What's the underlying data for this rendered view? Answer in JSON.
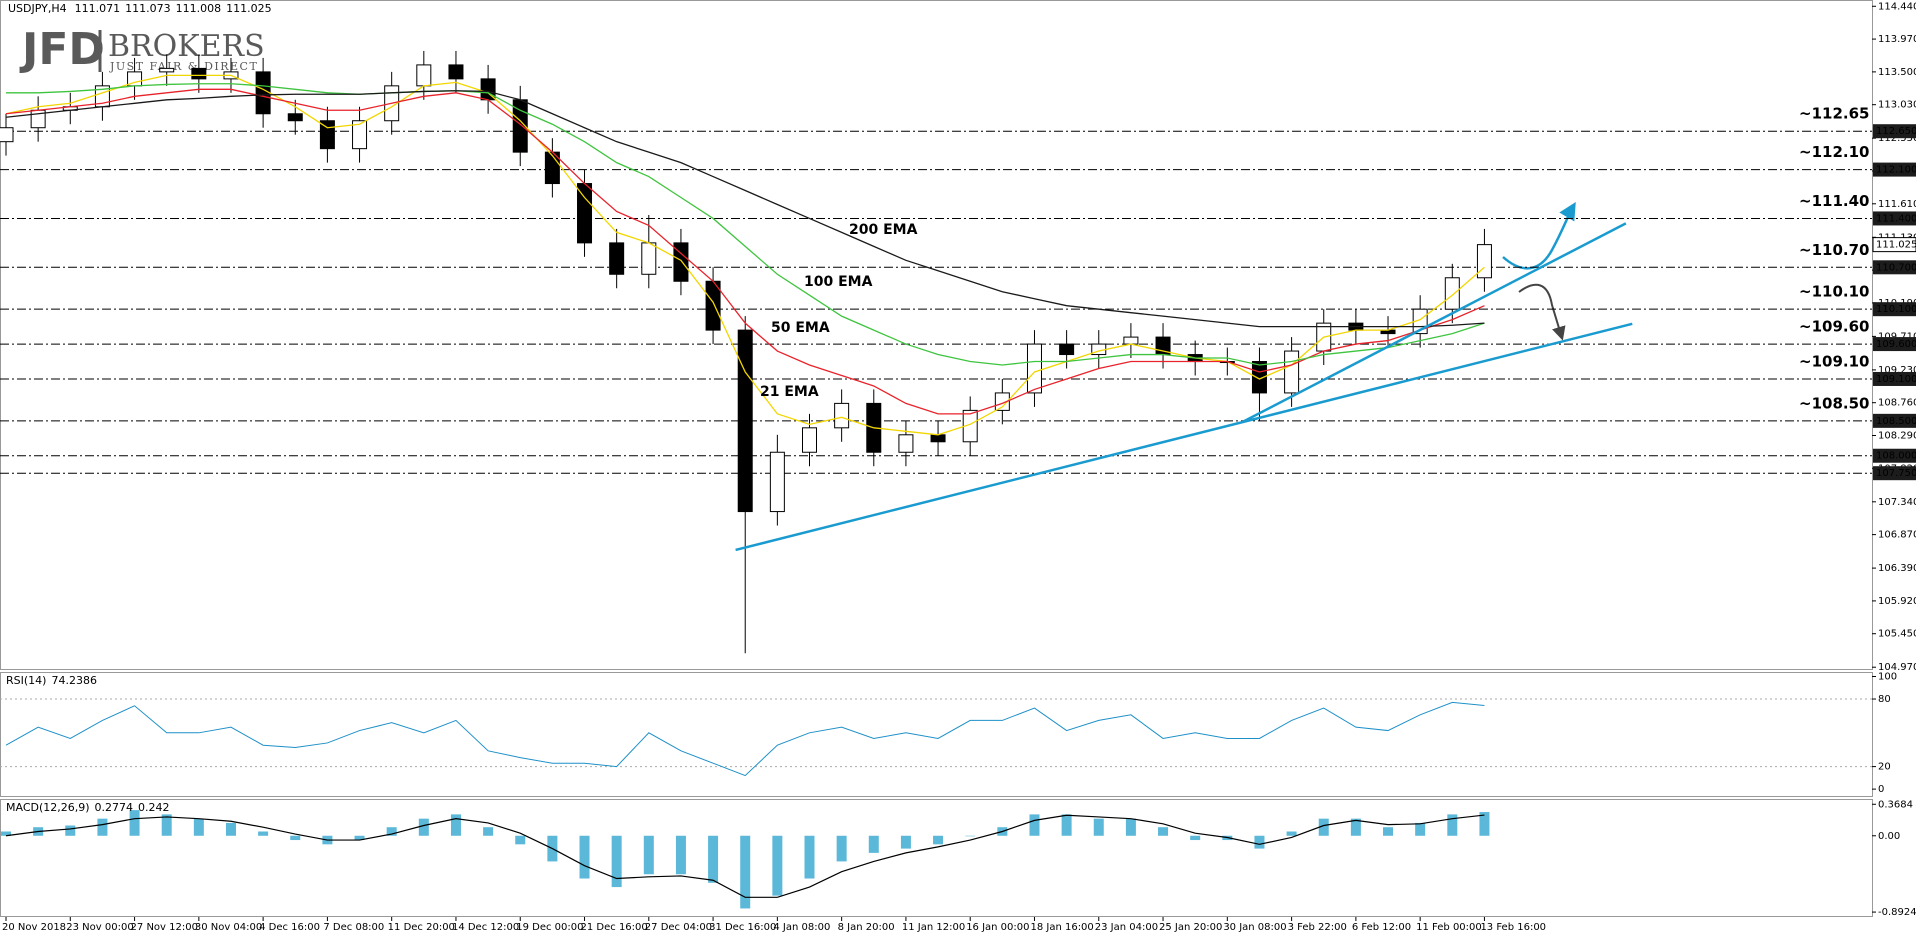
{
  "header": {
    "symbol": "USDJPY,H4",
    "ohlc": [
      111.071,
      111.073,
      111.008,
      111.025
    ]
  },
  "logo": {
    "mark": "JFD",
    "name": "BROKERS",
    "tagline": "JUST FAIR & DIRECT"
  },
  "chart_data": [
    {
      "type": "candlestick",
      "categories": [
        "20 Nov 2018",
        null,
        "23 Nov 00:00",
        null,
        "27 Nov 12:00",
        null,
        "30 Nov 04:00",
        null,
        "4 Dec 16:00",
        null,
        "7 Dec 08:00",
        null,
        "11 Dec 20:00",
        null,
        "14 Dec 12:00",
        null,
        "19 Dec 00:00",
        null,
        "21 Dec 16:00",
        null,
        "27 Dec 04:00",
        null,
        "31 Dec 16:00",
        null,
        "4 Jan 08:00",
        null,
        "8 Jan 20:00",
        null,
        "11 Jan 12:00",
        null,
        "16 Jan 00:00",
        null,
        "18 Jan 16:00",
        null,
        "23 Jan 04:00",
        null,
        "25 Jan 20:00",
        null,
        "30 Jan 08:00",
        null,
        "3 Feb 22:00",
        null,
        "6 Feb 12:00",
        null,
        "11 Feb 00:00",
        null,
        "13 Feb 16:00"
      ],
      "open": [
        112.5,
        112.7,
        112.95,
        113.0,
        113.3,
        113.5,
        113.55,
        113.4,
        113.5,
        112.9,
        112.8,
        112.4,
        112.8,
        113.3,
        113.6,
        113.4,
        113.1,
        112.35,
        111.9,
        111.05,
        110.6,
        111.05,
        110.5,
        109.8,
        107.2,
        108.05,
        108.4,
        108.75,
        108.05,
        108.3,
        108.2,
        108.65,
        108.9,
        109.6,
        109.45,
        109.6,
        109.7,
        109.45,
        109.35,
        109.35,
        108.9,
        109.5,
        109.9,
        109.8,
        109.75,
        110.1,
        110.55
      ],
      "high": [
        112.9,
        113.15,
        113.2,
        113.5,
        113.7,
        113.75,
        113.75,
        113.7,
        113.7,
        113.1,
        113.0,
        113.0,
        113.5,
        113.8,
        113.8,
        113.6,
        113.3,
        112.55,
        112.1,
        111.25,
        111.45,
        111.25,
        110.7,
        110.0,
        108.3,
        108.6,
        108.95,
        108.95,
        108.5,
        108.5,
        108.85,
        109.1,
        109.8,
        109.8,
        109.8,
        109.9,
        109.9,
        109.65,
        109.55,
        109.55,
        109.7,
        110.1,
        110.1,
        110.0,
        110.3,
        110.75,
        111.25
      ],
      "low": [
        112.3,
        112.5,
        112.75,
        112.8,
        113.1,
        113.3,
        113.2,
        113.2,
        112.7,
        112.6,
        112.2,
        112.2,
        112.6,
        113.1,
        113.2,
        112.9,
        112.15,
        111.7,
        110.85,
        110.4,
        110.4,
        110.3,
        109.6,
        105.17,
        107.0,
        107.85,
        108.2,
        107.85,
        107.85,
        108.0,
        108.0,
        108.45,
        108.7,
        109.25,
        109.25,
        109.4,
        109.25,
        109.15,
        109.15,
        108.5,
        108.7,
        109.3,
        109.6,
        109.55,
        109.55,
        109.9,
        110.35
      ],
      "close": [
        112.7,
        112.95,
        113.0,
        113.3,
        113.5,
        113.55,
        113.4,
        113.5,
        112.9,
        112.8,
        112.4,
        112.8,
        113.3,
        113.6,
        113.4,
        113.1,
        112.35,
        111.9,
        111.05,
        110.6,
        111.05,
        110.5,
        109.8,
        107.2,
        108.05,
        108.4,
        108.75,
        108.05,
        108.3,
        108.2,
        108.65,
        108.9,
        109.6,
        109.45,
        109.6,
        109.7,
        109.45,
        109.35,
        109.35,
        108.9,
        109.5,
        109.9,
        109.8,
        109.75,
        110.1,
        110.55,
        111.025
      ],
      "up_color": "#ffffff",
      "down_color": "#000000",
      "series": [
        {
          "name": "21 EMA",
          "color": "#f2d600",
          "values": [
            112.9,
            113.0,
            113.05,
            113.2,
            113.35,
            113.45,
            113.45,
            113.45,
            113.25,
            113.0,
            112.7,
            112.75,
            113.0,
            113.3,
            113.35,
            113.2,
            112.8,
            112.3,
            111.7,
            111.2,
            111.05,
            110.8,
            110.2,
            109.2,
            108.6,
            108.45,
            108.55,
            108.4,
            108.35,
            108.3,
            108.45,
            108.7,
            109.2,
            109.35,
            109.5,
            109.6,
            109.5,
            109.4,
            109.35,
            109.1,
            109.3,
            109.7,
            109.8,
            109.8,
            109.95,
            110.3,
            110.7
          ]
        },
        {
          "name": "50 EMA",
          "color": "#e8232b",
          "values": [
            112.9,
            112.95,
            113.0,
            113.05,
            113.15,
            113.2,
            113.25,
            113.25,
            113.15,
            113.05,
            112.95,
            112.95,
            113.05,
            113.15,
            113.2,
            113.1,
            112.75,
            112.35,
            111.9,
            111.5,
            111.3,
            110.9,
            110.5,
            109.9,
            109.5,
            109.3,
            109.15,
            109.0,
            108.75,
            108.6,
            108.6,
            108.75,
            108.95,
            109.1,
            109.25,
            109.35,
            109.35,
            109.35,
            109.35,
            109.2,
            109.3,
            109.5,
            109.6,
            109.65,
            109.8,
            109.95,
            110.15
          ]
        },
        {
          "name": "100 EMA",
          "color": "#3fc43f",
          "values": [
            113.2,
            113.2,
            113.22,
            113.25,
            113.3,
            113.32,
            113.33,
            113.33,
            113.3,
            113.25,
            113.2,
            113.18,
            113.2,
            113.22,
            113.23,
            113.2,
            112.95,
            112.75,
            112.5,
            112.2,
            112.0,
            111.7,
            111.4,
            111.0,
            110.6,
            110.3,
            110.0,
            109.8,
            109.6,
            109.45,
            109.35,
            109.3,
            109.35,
            109.35,
            109.4,
            109.45,
            109.45,
            109.4,
            109.4,
            109.3,
            109.35,
            109.45,
            109.5,
            109.55,
            109.65,
            109.75,
            109.9
          ]
        },
        {
          "name": "200 EMA",
          "color": "#1a1a1a",
          "values": [
            112.85,
            112.9,
            112.95,
            113.0,
            113.05,
            113.1,
            113.12,
            113.15,
            113.17,
            113.18,
            113.18,
            113.18,
            113.2,
            113.22,
            113.23,
            113.22,
            113.1,
            112.9,
            112.7,
            112.5,
            112.35,
            112.2,
            112.0,
            111.8,
            111.6,
            111.4,
            111.2,
            111.0,
            110.8,
            110.65,
            110.5,
            110.35,
            110.25,
            110.15,
            110.1,
            110.05,
            110.0,
            109.95,
            109.9,
            109.85,
            109.85,
            109.85,
            109.85,
            109.85,
            109.85,
            109.87,
            109.9
          ]
        }
      ],
      "trendlines": [
        {
          "color": "#1a9bd0",
          "x": [
            22.7,
            50.6
          ],
          "y": [
            106.65,
            109.89
          ]
        },
        {
          "color": "#1a9bd0",
          "x": [
            38.5,
            50.4
          ],
          "y": [
            108.49,
            111.33
          ]
        }
      ],
      "levels": [
        {
          "value": 112.65,
          "label": "112.650",
          "annotation": "~112.65",
          "annotation_color": "#1a9bd0"
        },
        {
          "value": 112.1,
          "label": "112.100",
          "annotation": "~112.10",
          "annotation_color": "#1a9bd0"
        },
        {
          "value": 111.4,
          "label": "111.400",
          "annotation": "~111.40",
          "annotation_color": "#1a9bd0"
        },
        {
          "value": 110.7,
          "label": "110.700",
          "annotation": "~110.70",
          "annotation_color": "#1a9bd0"
        },
        {
          "value": 110.1,
          "label": "110.100",
          "annotation": "~110.10",
          "annotation_color": "#333333"
        },
        {
          "value": 109.6,
          "label": "109.600",
          "annotation": "~109.60",
          "annotation_color": "#333333"
        },
        {
          "value": 109.1,
          "label": "109.100",
          "annotation": "~109.10",
          "annotation_color": "#333333"
        },
        {
          "value": 108.5,
          "label": "108.500",
          "annotation": "~108.50",
          "annotation_color": "#333333"
        },
        {
          "value": 108.0,
          "label": "108.000"
        },
        {
          "value": 107.75,
          "label": "107.750"
        }
      ],
      "ylim": [
        104.93,
        114.53
      ],
      "yticks": [
        {
          "value": 114.44,
          "label": "114.440"
        },
        {
          "value": 113.97,
          "label": "113.970"
        },
        {
          "value": 113.5,
          "label": "113.500"
        },
        {
          "value": 113.03,
          "label": "113.030"
        },
        {
          "value": 112.55,
          "label": "112.550"
        },
        {
          "value": 112.08,
          "label": "112.080"
        },
        {
          "value": 111.61,
          "label": "111.610"
        },
        {
          "value": 111.13,
          "label": "111.130"
        },
        {
          "value": 110.66,
          "label": "110.660"
        },
        {
          "value": 110.19,
          "label": "110.190"
        },
        {
          "value": 109.71,
          "label": "109.710"
        },
        {
          "value": 109.23,
          "label": "109.230"
        },
        {
          "value": 108.76,
          "label": "108.760"
        },
        {
          "value": 108.29,
          "label": "108.290"
        },
        {
          "value": 107.82,
          "label": "107.820"
        },
        {
          "value": 107.34,
          "label": "107.340"
        },
        {
          "value": 106.87,
          "label": "106.870"
        },
        {
          "value": 106.39,
          "label": "106.390"
        },
        {
          "value": 105.92,
          "label": "105.920"
        },
        {
          "value": 105.45,
          "label": "105.450"
        },
        {
          "value": 104.97,
          "label": "104.970"
        }
      ]
    },
    {
      "type": "line",
      "series": [
        {
          "name": "RSI(14)",
          "color": "#1e90c8",
          "values": [
            39,
            55,
            45,
            61,
            74,
            50,
            50,
            55,
            39,
            37,
            41,
            52,
            59,
            50,
            61,
            34,
            28,
            23,
            23,
            20,
            50,
            34,
            23,
            12,
            39,
            50,
            55,
            45,
            50,
            45,
            61,
            61,
            72,
            52,
            61,
            66,
            45,
            50,
            45,
            45,
            61,
            72,
            55,
            52,
            66,
            77,
            74.2386
          ]
        }
      ],
      "levels": [
        80,
        20
      ],
      "ylim": [
        -7,
        104
      ],
      "yticks": [
        100,
        80,
        20,
        0
      ]
    },
    {
      "type": "combo",
      "series": [
        {
          "name": "MACD(12,26,9)",
          "type": "bar",
          "color": "#5bb8d8",
          "values": [
            0.05,
            0.1,
            0.12,
            0.2,
            0.3,
            0.25,
            0.2,
            0.15,
            0.05,
            -0.05,
            -0.1,
            -0.05,
            0.1,
            0.2,
            0.25,
            0.1,
            -0.1,
            -0.3,
            -0.5,
            -0.6,
            -0.45,
            -0.45,
            -0.55,
            -0.85,
            -0.7,
            -0.5,
            -0.3,
            -0.2,
            -0.15,
            -0.1,
            0,
            0.1,
            0.25,
            0.25,
            0.2,
            0.2,
            0.1,
            -0.05,
            -0.05,
            -0.15,
            0.05,
            0.2,
            0.2,
            0.1,
            0.15,
            0.25,
            0.2774
          ]
        },
        {
          "type": "line",
          "color": "#000000",
          "values": [
            0,
            0.05,
            0.08,
            0.13,
            0.2,
            0.22,
            0.2,
            0.17,
            0.1,
            0.02,
            -0.05,
            -0.05,
            0.02,
            0.12,
            0.2,
            0.15,
            0.03,
            -0.15,
            -0.35,
            -0.5,
            -0.48,
            -0.47,
            -0.52,
            -0.72,
            -0.72,
            -0.6,
            -0.42,
            -0.3,
            -0.2,
            -0.13,
            -0.05,
            0.05,
            0.18,
            0.24,
            0.22,
            0.2,
            0.14,
            0.03,
            -0.02,
            -0.1,
            -0.02,
            0.12,
            0.18,
            0.13,
            0.14,
            0.2,
            0.242
          ]
        }
      ],
      "ylim": [
        -0.95,
        0.43
      ],
      "yticks": [
        {
          "value": 0.3684,
          "label": "0.3684"
        },
        {
          "value": 0,
          "label": "0.00"
        },
        {
          "value": -0.8924,
          "label": "-0.8924"
        }
      ]
    }
  ]
}
